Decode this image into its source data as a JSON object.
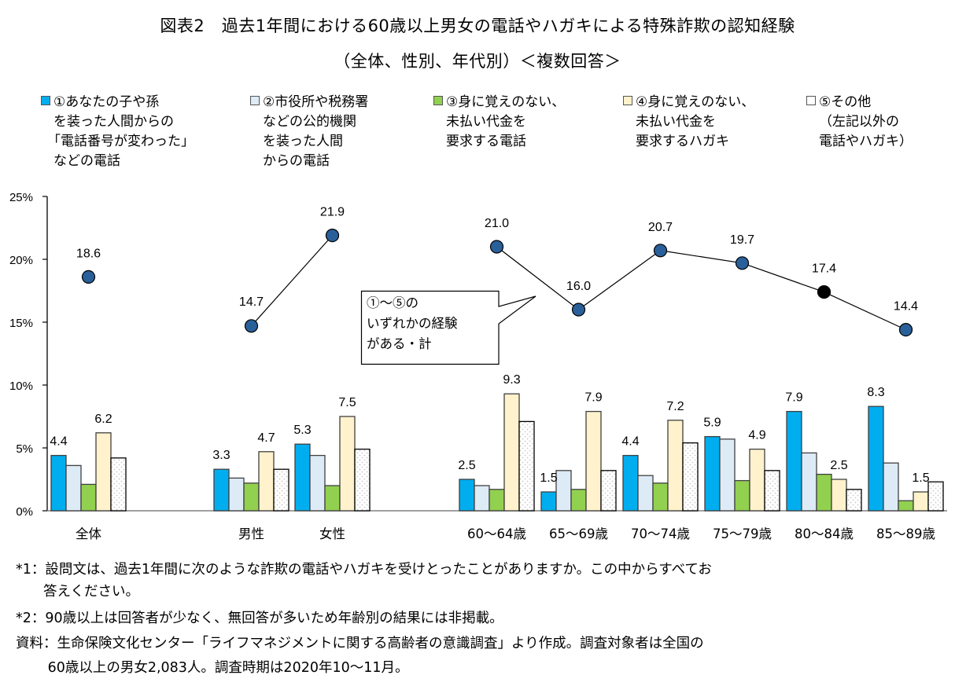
{
  "title": {
    "line1": "図表2　過去1年間における60歳以上男女の電話やハガキによる特殊詐欺の認知経験",
    "line2": "（全体、性別、年代別）＜複数回答＞"
  },
  "legend": [
    {
      "lines": [
        "①あなたの子や孫",
        "を装った人間からの",
        "「電話番号が変わった」",
        "などの電話"
      ],
      "color": "#00AEEF"
    },
    {
      "lines": [
        "②市役所や税務署",
        "などの公的機関",
        "を装った人間",
        "からの電話"
      ],
      "color": "#DDEBF7"
    },
    {
      "lines": [
        "③身に覚えのない、",
        "未払い代金を",
        "要求する電話"
      ],
      "color": "#92D050"
    },
    {
      "lines": [
        "④身に覚えのない、",
        "未払い代金を",
        "要求するハガキ"
      ],
      "color": "#FFF2CC"
    },
    {
      "lines": [
        "⑤その他",
        "（左記以外の",
        "電話やハガキ）"
      ],
      "color": "#FFFFFF"
    }
  ],
  "callout": {
    "lines": [
      "①～⑤の",
      "いずれかの経験",
      "がある・計"
    ]
  },
  "chart_data": {
    "type": "bar",
    "title": "図表2　過去1年間における60歳以上男女の電話やハガキによる特殊詐欺の認知経験",
    "subtitle": "（全体、性別、年代別）＜複数回答＞",
    "xlabel": "",
    "ylabel": "",
    "ylim": [
      0,
      25
    ],
    "yticks": [
      0,
      5,
      10,
      15,
      20,
      25
    ],
    "ytick_labels": [
      "0%",
      "5%",
      "10%",
      "15%",
      "20%",
      "25%"
    ],
    "grid": false,
    "legend_position": "top",
    "categories": [
      "全体",
      "男性",
      "女性",
      "60～64歳",
      "65～69歳",
      "70～74歳",
      "75～79歳",
      "80～84歳",
      "85～89歳"
    ],
    "series": [
      {
        "name": "①あなたの子や孫を装った人間からの「電話番号が変わった」などの電話",
        "values": [
          4.4,
          3.3,
          5.3,
          2.5,
          1.5,
          4.4,
          5.9,
          7.9,
          8.3
        ],
        "color": "#00AEEF",
        "labeled": true
      },
      {
        "name": "②市役所や税務署などの公的機関を装った人間からの電話",
        "values": [
          3.6,
          2.6,
          4.4,
          2.0,
          3.2,
          2.8,
          5.7,
          4.6,
          3.8
        ],
        "color": "#DDEBF7",
        "labeled": false
      },
      {
        "name": "③身に覚えのない、未払い代金を要求する電話",
        "values": [
          2.1,
          2.2,
          2.0,
          1.7,
          1.7,
          2.2,
          2.4,
          2.9,
          0.8
        ],
        "color": "#92D050",
        "labeled": false
      },
      {
        "name": "④身に覚えのない、未払い代金を要求するハガキ",
        "values": [
          6.2,
          4.7,
          7.5,
          9.3,
          7.9,
          7.2,
          4.9,
          2.5,
          1.5
        ],
        "color": "#FFF2CC",
        "labeled": true
      },
      {
        "name": "⑤その他（左記以外の電話やハガキ）",
        "values": [
          4.2,
          3.3,
          4.9,
          7.1,
          3.2,
          5.4,
          3.2,
          1.7,
          2.3
        ],
        "color": "#FFFFFF",
        "pattern": "dots",
        "labeled": false
      }
    ],
    "line_series": {
      "name": "①～⑤のいずれかの経験がある・計",
      "values": [
        18.6,
        14.7,
        21.9,
        21.0,
        16.0,
        20.7,
        19.7,
        17.4,
        14.4
      ],
      "value_labels": [
        "18.6",
        "14.7",
        "21.9",
        "21.0",
        "16.0",
        "20.7",
        "19.7",
        "17.4",
        "14.4"
      ],
      "segments": [
        [
          1,
          2
        ],
        [
          3,
          4,
          5,
          6,
          7,
          8
        ]
      ],
      "marker_color": "#2A6099",
      "highlight_index": 7,
      "highlight_color": "#000000"
    },
    "bar_value_labels": {
      "series0": [
        "4.4",
        "3.3",
        "5.3",
        "2.5",
        "1.5",
        "4.4",
        "5.9",
        "7.9",
        "8.3"
      ],
      "series3": [
        "6.2",
        "4.7",
        "7.5",
        "9.3",
        "7.9",
        "7.2",
        "4.9",
        "2.5",
        "1.5"
      ]
    }
  },
  "footnotes": [
    "*1：設問文は、過去1年間に次のような詐欺の電話やハガキを受けとったことがありますか。この中からすべてお",
    "　　答えください。",
    "*2：90歳以上は回答者が少なく、無回答が多いため年齢別の結果には非掲載。",
    "資料：生命保険文化センター「ライフマネジメントに関する高齢者の意識調査」より作成。調査対象者は全国の",
    "　　 60歳以上の男女2,083人。調査時期は2020年10～11月。"
  ]
}
